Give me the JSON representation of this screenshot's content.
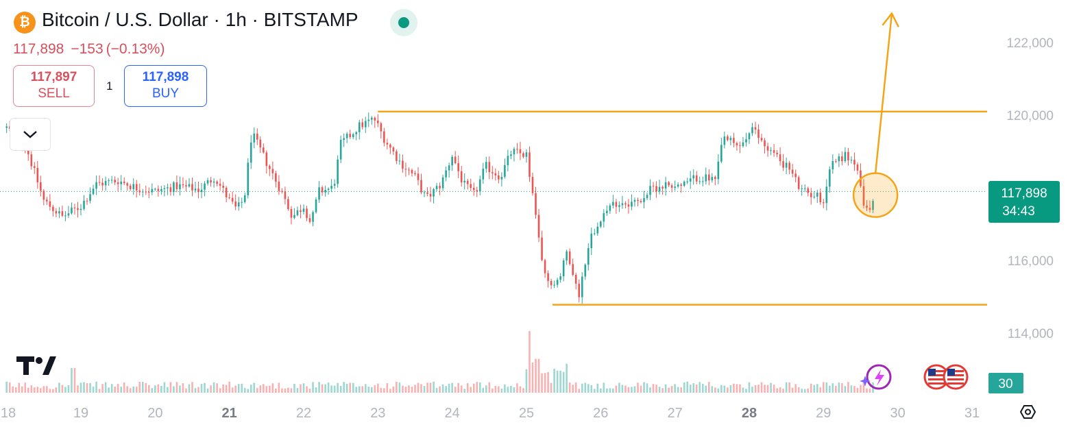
{
  "header": {
    "logo_glyph": "₿",
    "title": "Bitcoin / U.S. Dollar · 1h · BITSTAMP",
    "last_price": "117,898",
    "change": "−153",
    "change_pct": "(−0.13%)"
  },
  "trade": {
    "sell_price": "117,897",
    "sell_label": "SELL",
    "spread": "1",
    "buy_price": "117,898",
    "buy_label": "BUY"
  },
  "colors": {
    "up": "#26a69a",
    "down": "#ef5350",
    "drawing": "#f4a516",
    "price_tag": "#089981"
  },
  "price_tag": {
    "price": "117,898",
    "countdown": "34:43"
  },
  "volume_tag": "30",
  "icons": [
    "bitcoin-logo-icon",
    "live-status-icon",
    "chevron-down-icon",
    "tradingview-logo-icon",
    "lightning-sparkle-icon",
    "us-flag-event-icon",
    "settings-hexagon-icon"
  ],
  "chart_data": {
    "type": "candlestick",
    "interval": "1h",
    "y_ticks": [
      {
        "value": 122000,
        "label": "122,000"
      },
      {
        "value": 120000,
        "label": "120,000"
      },
      {
        "value": 116000,
        "label": "116,000"
      },
      {
        "value": 114000,
        "label": "114,000"
      }
    ],
    "x_ticks": [
      {
        "day": 18,
        "label": "18",
        "bold": false
      },
      {
        "day": 19,
        "label": "19",
        "bold": false
      },
      {
        "day": 20,
        "label": "20",
        "bold": false
      },
      {
        "day": 21,
        "label": "21",
        "bold": true
      },
      {
        "day": 22,
        "label": "22",
        "bold": false
      },
      {
        "day": 23,
        "label": "23",
        "bold": false
      },
      {
        "day": 24,
        "label": "24",
        "bold": false
      },
      {
        "day": 25,
        "label": "25",
        "bold": false
      },
      {
        "day": 26,
        "label": "26",
        "bold": false
      },
      {
        "day": 27,
        "label": "27",
        "bold": false
      },
      {
        "day": 28,
        "label": "28",
        "bold": true
      },
      {
        "day": 29,
        "label": "29",
        "bold": false
      },
      {
        "day": 30,
        "label": "30",
        "bold": false
      },
      {
        "day": 31,
        "label": "31",
        "bold": false
      }
    ],
    "current_price": 117898,
    "price_path": [
      [
        18.0,
        119650
      ],
      [
        18.25,
        119200
      ],
      [
        18.5,
        117650
      ],
      [
        18.75,
        117200
      ],
      [
        19.0,
        117500
      ],
      [
        19.2,
        118100
      ],
      [
        19.5,
        118200
      ],
      [
        19.75,
        118000
      ],
      [
        20.0,
        117900
      ],
      [
        20.3,
        118050
      ],
      [
        20.6,
        117950
      ],
      [
        20.8,
        118300
      ],
      [
        21.0,
        117650
      ],
      [
        21.1,
        117400
      ],
      [
        21.2,
        117700
      ],
      [
        21.3,
        119500
      ],
      [
        21.5,
        118700
      ],
      [
        21.7,
        117900
      ],
      [
        21.85,
        117200
      ],
      [
        22.0,
        117500
      ],
      [
        22.1,
        117000
      ],
      [
        22.2,
        117900
      ],
      [
        22.4,
        118000
      ],
      [
        22.5,
        119200
      ],
      [
        22.75,
        119700
      ],
      [
        22.95,
        119900
      ],
      [
        23.1,
        119300
      ],
      [
        23.3,
        118700
      ],
      [
        23.5,
        118300
      ],
      [
        23.65,
        117700
      ],
      [
        23.85,
        118100
      ],
      [
        24.0,
        118900
      ],
      [
        24.15,
        118100
      ],
      [
        24.3,
        117800
      ],
      [
        24.45,
        118600
      ],
      [
        24.65,
        118300
      ],
      [
        24.8,
        119000
      ],
      [
        25.0,
        118900
      ],
      [
        25.1,
        117600
      ],
      [
        25.2,
        116000
      ],
      [
        25.3,
        115300
      ],
      [
        25.45,
        115500
      ],
      [
        25.55,
        116300
      ],
      [
        25.7,
        115000
      ],
      [
        25.85,
        116600
      ],
      [
        26.0,
        117200
      ],
      [
        26.2,
        117600
      ],
      [
        26.5,
        117600
      ],
      [
        26.7,
        118000
      ],
      [
        26.9,
        118100
      ],
      [
        27.1,
        118050
      ],
      [
        27.3,
        118300
      ],
      [
        27.55,
        118200
      ],
      [
        27.65,
        119400
      ],
      [
        27.85,
        119100
      ],
      [
        28.05,
        119600
      ],
      [
        28.2,
        119200
      ],
      [
        28.4,
        118800
      ],
      [
        28.55,
        118500
      ],
      [
        28.7,
        117900
      ],
      [
        28.9,
        117800
      ],
      [
        29.0,
        117650
      ],
      [
        29.1,
        118700
      ],
      [
        29.3,
        118900
      ],
      [
        29.45,
        118600
      ],
      [
        29.55,
        117300
      ],
      [
        29.65,
        117500
      ],
      [
        29.7,
        117900
      ]
    ],
    "volume_spikes": [
      [
        25.05,
        1.0
      ],
      [
        25.15,
        0.55
      ],
      [
        25.25,
        0.32
      ],
      [
        25.4,
        0.3
      ],
      [
        18.9,
        0.4
      ],
      [
        29.7,
        0.35
      ]
    ],
    "drawings": [
      {
        "type": "horizontal-line",
        "price": 120100,
        "from_day": 23.0
      },
      {
        "type": "horizontal-line",
        "price": 114780,
        "from_day": 25.35
      },
      {
        "type": "circle",
        "day": 29.7,
        "price": 117800
      },
      {
        "type": "arrow",
        "from_day": 29.7,
        "from_price": 118400,
        "to_day": 29.92,
        "to_price": 122800
      }
    ]
  }
}
